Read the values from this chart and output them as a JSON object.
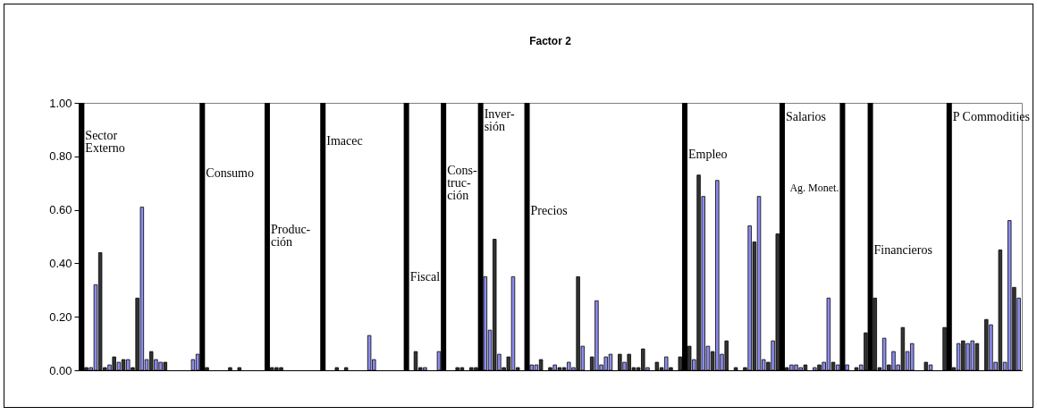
{
  "chart_data": {
    "type": "bar",
    "title": "Factor 2",
    "categories": [
      null,
      null,
      null,
      null,
      null,
      null,
      null,
      null,
      null,
      null,
      null,
      null,
      null,
      null,
      null,
      null,
      null,
      null,
      null,
      null,
      null,
      null,
      null,
      null,
      null,
      null,
      null,
      null,
      null,
      null,
      null,
      null,
      null,
      null,
      null,
      null,
      null,
      null,
      null,
      null,
      null,
      null,
      null,
      null,
      null,
      null,
      null,
      null,
      null,
      null,
      null,
      null,
      null,
      null,
      null,
      null,
      null,
      null,
      null,
      null,
      null,
      null,
      null,
      null,
      null,
      null,
      null,
      null,
      null,
      null,
      null,
      null,
      null,
      null,
      null,
      null,
      null,
      null,
      null,
      null,
      null,
      null,
      null,
      null,
      null,
      null,
      null,
      null,
      null,
      null,
      null,
      null,
      null,
      null,
      null,
      null,
      null,
      null,
      null,
      null,
      null,
      null,
      null,
      null,
      null,
      null,
      null,
      null,
      null,
      null,
      null,
      null,
      null,
      null,
      null,
      null,
      null,
      null,
      null,
      null,
      null,
      null,
      null,
      null,
      null,
      null,
      null,
      null,
      null,
      null,
      null,
      null,
      null,
      null,
      null,
      null,
      null,
      null,
      null,
      null,
      null,
      null,
      null,
      null,
      null,
      null,
      null,
      null,
      null,
      null,
      null,
      null,
      null,
      null,
      null,
      null,
      null,
      null,
      null,
      null,
      null,
      null,
      null,
      null,
      null,
      null,
      null,
      null,
      null,
      null,
      null,
      null,
      null,
      null,
      null,
      null,
      null,
      null,
      null,
      null,
      null,
      null,
      null,
      null,
      null,
      null,
      null,
      null,
      null,
      null,
      null,
      null,
      null,
      null,
      null,
      null,
      null,
      null,
      null,
      null,
      null,
      null,
      null
    ],
    "series": [
      {
        "values": [
          null,
          0.01,
          0.01,
          0.32,
          0.44,
          0.01,
          0.02,
          0.05,
          0.03,
          0.04,
          0.04,
          0.01,
          0.27,
          0.61,
          0.04,
          0.07,
          0.04,
          0.03,
          0.03,
          null,
          null,
          null,
          null,
          null,
          0.04,
          0.06,
          null,
          0.01,
          null,
          null,
          null,
          null,
          0.01,
          null,
          0.01,
          null,
          null,
          null,
          null,
          null,
          null,
          0.01,
          0.01,
          0.01,
          null,
          null,
          null,
          null,
          null,
          null,
          null,
          null,
          null,
          null,
          null,
          0.01,
          null,
          0.01,
          null,
          null,
          null,
          null,
          0.13,
          0.04,
          null,
          null,
          null,
          null,
          null,
          null,
          null,
          null,
          0.07,
          0.01,
          0.01,
          null,
          null,
          0.07,
          null,
          null,
          null,
          0.01,
          0.01,
          null,
          0.01,
          0.01,
          null,
          0.35,
          0.15,
          0.49,
          0.06,
          0.01,
          0.05,
          0.35,
          0.01,
          null,
          null,
          0.02,
          0.02,
          0.04,
          null,
          0.01,
          0.02,
          0.01,
          0.01,
          0.03,
          0.01,
          0.35,
          0.09,
          null,
          0.05,
          0.26,
          0.02,
          0.05,
          0.06,
          null,
          0.06,
          0.03,
          0.06,
          0.01,
          0.01,
          0.08,
          0.01,
          null,
          0.03,
          0.01,
          0.05,
          0.01,
          null,
          0.05,
          null,
          0.09,
          0.04,
          0.73,
          0.65,
          0.09,
          0.07,
          0.71,
          0.06,
          0.11,
          null,
          0.01,
          null,
          0.01,
          0.54,
          0.48,
          0.65,
          0.04,
          0.03,
          0.11,
          0.51,
          null,
          0.01,
          0.02,
          0.02,
          0.01,
          0.02,
          null,
          0.01,
          0.02,
          0.03,
          0.27,
          0.03,
          0.02,
          null,
          0.02,
          null,
          0.01,
          0.02,
          0.14,
          null,
          0.27,
          0.01,
          0.12,
          0.02,
          0.07,
          0.02,
          0.16,
          0.07,
          0.1,
          null,
          null,
          0.03,
          0.02,
          null,
          null,
          0.16,
          null,
          0.01,
          0.1,
          0.11,
          0.1,
          0.11,
          0.1,
          null,
          0.19,
          0.17,
          0.03,
          0.45,
          0.03,
          0.56,
          0.31,
          0.27
        ],
        "colors": [
          null,
          "#333333",
          "#8c8cf0",
          "#8c8cf0",
          "#333333",
          "#333333",
          "#8c8cf0",
          "#333333",
          "#8c8cf0",
          "#333333",
          "#8c8cf0",
          "#333333",
          "#333333",
          "#8c8cf0",
          "#8c8cf0",
          "#333333",
          "#8c8cf0",
          "#8c8cf0",
          "#333333",
          null,
          null,
          null,
          null,
          null,
          "#8c8cf0",
          "#8c8cf0",
          null,
          "#333333",
          null,
          null,
          null,
          null,
          "#333333",
          null,
          "#333333",
          null,
          null,
          null,
          null,
          null,
          null,
          "#333333",
          "#333333",
          "#333333",
          null,
          null,
          null,
          null,
          null,
          null,
          null,
          null,
          null,
          null,
          null,
          "#333333",
          null,
          "#333333",
          null,
          null,
          null,
          null,
          "#8c8cf0",
          "#8c8cf0",
          null,
          null,
          null,
          null,
          null,
          null,
          null,
          null,
          "#333333",
          "#333333",
          "#8c8cf0",
          null,
          null,
          "#8c8cf0",
          null,
          null,
          null,
          "#333333",
          "#333333",
          null,
          "#333333",
          "#333333",
          null,
          "#8c8cf0",
          "#8c8cf0",
          "#333333",
          "#8c8cf0",
          "#333333",
          "#333333",
          "#8c8cf0",
          "#333333",
          null,
          null,
          "#8c8cf0",
          "#8c8cf0",
          "#333333",
          null,
          "#333333",
          "#8c8cf0",
          "#333333",
          "#333333",
          "#8c8cf0",
          "#8c8cf0",
          "#333333",
          "#8c8cf0",
          null,
          "#333333",
          "#8c8cf0",
          "#8c8cf0",
          "#8c8cf0",
          "#8c8cf0",
          null,
          "#333333",
          "#8c8cf0",
          "#333333",
          "#333333",
          "#333333",
          "#333333",
          "#8c8cf0",
          null,
          "#333333",
          "#333333",
          "#8c8cf0",
          "#333333",
          null,
          "#333333",
          null,
          "#333333",
          "#8c8cf0",
          "#333333",
          "#8c8cf0",
          "#8c8cf0",
          "#333333",
          "#8c8cf0",
          "#8c8cf0",
          "#333333",
          null,
          "#333333",
          null,
          "#333333",
          "#8c8cf0",
          "#333333",
          "#8c8cf0",
          "#8c8cf0",
          "#333333",
          "#8c8cf0",
          "#333333",
          null,
          "#333333",
          "#8c8cf0",
          "#8c8cf0",
          "#8c8cf0",
          "#333333",
          null,
          "#8c8cf0",
          "#333333",
          "#8c8cf0",
          "#8c8cf0",
          "#333333",
          "#8c8cf0",
          null,
          "#8c8cf0",
          null,
          "#333333",
          "#8c8cf0",
          "#333333",
          null,
          "#333333",
          "#333333",
          "#8c8cf0",
          "#333333",
          "#8c8cf0",
          "#8c8cf0",
          "#333333",
          "#8c8cf0",
          "#8c8cf0",
          null,
          null,
          "#333333",
          "#8c8cf0",
          null,
          null,
          "#333333",
          null,
          "#333333",
          "#8c8cf0",
          "#333333",
          "#8c8cf0",
          "#8c8cf0",
          "#333333",
          null,
          "#333333",
          "#8c8cf0",
          "#8c8cf0",
          "#333333",
          "#8c8cf0",
          "#8c8cf0",
          "#333333",
          "#8c8cf0"
        ]
      },
      {
        "color": "#000000",
        "values": [
          1,
          null,
          null,
          null,
          null,
          null,
          null,
          null,
          null,
          null,
          null,
          null,
          null,
          null,
          null,
          null,
          null,
          null,
          null,
          null,
          null,
          null,
          null,
          null,
          null,
          null,
          1,
          null,
          null,
          null,
          null,
          null,
          null,
          null,
          null,
          null,
          null,
          null,
          null,
          null,
          1,
          null,
          null,
          null,
          null,
          null,
          null,
          null,
          null,
          null,
          null,
          null,
          1,
          null,
          null,
          null,
          null,
          null,
          null,
          null,
          null,
          null,
          null,
          null,
          null,
          null,
          null,
          null,
          null,
          null,
          1,
          null,
          null,
          null,
          null,
          null,
          null,
          null,
          1,
          null,
          null,
          null,
          null,
          null,
          null,
          null,
          1,
          null,
          null,
          null,
          null,
          null,
          null,
          null,
          null,
          null,
          1,
          null,
          null,
          null,
          null,
          null,
          null,
          null,
          null,
          null,
          null,
          null,
          null,
          null,
          null,
          null,
          null,
          null,
          null,
          null,
          null,
          null,
          null,
          null,
          null,
          null,
          null,
          null,
          null,
          null,
          null,
          null,
          null,
          null,
          1,
          null,
          null,
          null,
          null,
          null,
          null,
          null,
          null,
          null,
          null,
          null,
          null,
          null,
          null,
          null,
          null,
          null,
          null,
          null,
          null,
          1,
          null,
          null,
          null,
          null,
          null,
          null,
          null,
          null,
          null,
          null,
          null,
          null,
          1,
          null,
          null,
          null,
          null,
          null,
          1,
          null,
          null,
          null,
          null,
          null,
          null,
          null,
          null,
          null,
          null,
          null,
          null,
          null,
          null,
          null,
          null,
          1,
          null,
          null,
          null,
          null,
          null,
          null,
          null,
          null,
          null,
          null,
          null,
          null,
          null,
          null,
          null
        ]
      }
    ],
    "ylim": [
      0,
      1
    ],
    "yticks": [
      {
        "value": 0,
        "label": "0.00"
      },
      {
        "value": 0.2,
        "label": "0.20"
      },
      {
        "value": 0.4,
        "label": "0.40"
      },
      {
        "value": 0.6,
        "label": "0.60"
      },
      {
        "value": 0.8,
        "label": "0.80"
      },
      {
        "value": 1,
        "label": "1.00"
      }
    ],
    "tick_labels": "y",
    "annotations": [
      "Sector\nExterno",
      "Consumo",
      "Produc-\nción",
      "Imacec",
      "Fiscal",
      "Cons-\ntruc-\nción",
      "Inver-\nsión",
      "Precios",
      "Empleo",
      "Salarios",
      "Ag. Monet.",
      "Financieros",
      "P Commodities"
    ]
  }
}
